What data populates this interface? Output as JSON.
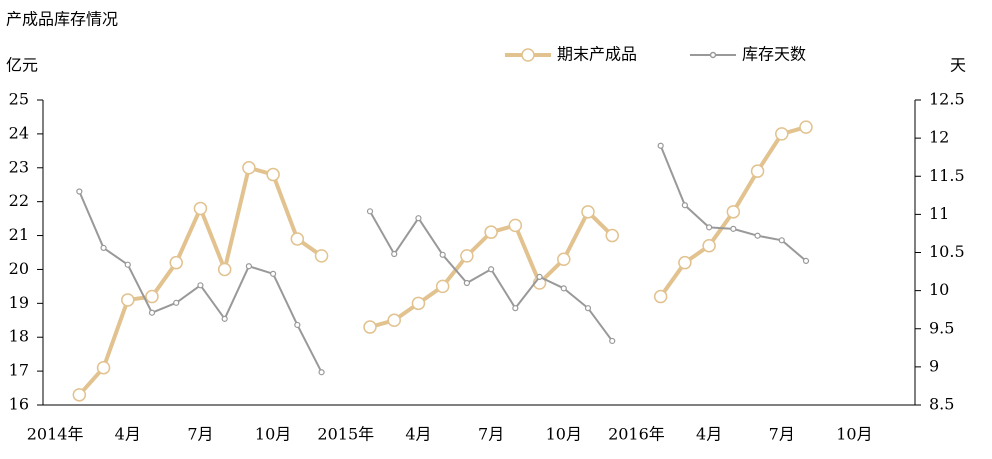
{
  "chart_data": {
    "type": "line",
    "title": "产成品库存情况",
    "y_label": "亿元",
    "y2_label": "天",
    "categories": [
      "2014年",
      null,
      null,
      "4月",
      null,
      null,
      "7月",
      null,
      null,
      "10月",
      null,
      null,
      "2015年",
      null,
      null,
      "4月",
      null,
      null,
      "7月",
      null,
      null,
      "10月",
      null,
      null,
      "2016年",
      null,
      null,
      "4月",
      null,
      null,
      "7月",
      null,
      null,
      "10月",
      null,
      null
    ],
    "series": [
      {
        "name": "期末产成品",
        "color": "#e2c28f",
        "axis": "y",
        "values": [
          null,
          16.3,
          17.1,
          19.1,
          19.2,
          20.2,
          21.8,
          20.0,
          23.0,
          22.8,
          20.9,
          20.4,
          null,
          18.3,
          18.5,
          19.0,
          19.5,
          20.4,
          21.1,
          21.3,
          19.6,
          20.3,
          21.7,
          21.0,
          null,
          19.2,
          20.2,
          20.7,
          21.7,
          22.9,
          24.0,
          24.2,
          null,
          null,
          null,
          null
        ]
      },
      {
        "name": "库存天数",
        "color": "#999999",
        "axis": "y2",
        "values": [
          null,
          11.3,
          10.56,
          10.34,
          9.71,
          9.84,
          10.07,
          9.63,
          10.32,
          10.22,
          9.55,
          8.93,
          null,
          11.04,
          10.48,
          10.95,
          10.47,
          10.1,
          10.28,
          9.77,
          10.18,
          10.03,
          9.77,
          9.34,
          null,
          11.9,
          11.12,
          10.83,
          10.81,
          10.72,
          10.66,
          10.39,
          null,
          null,
          null,
          null
        ]
      }
    ],
    "ylim": [
      16,
      25
    ],
    "yticks": [
      16,
      17,
      18,
      19,
      20,
      21,
      22,
      23,
      24,
      25
    ],
    "y2lim": [
      8.5,
      12.5
    ],
    "y2ticks": [
      8.5,
      9,
      9.5,
      10,
      10.5,
      11,
      11.5,
      12,
      12.5
    ],
    "legend": "top",
    "grid": false
  }
}
